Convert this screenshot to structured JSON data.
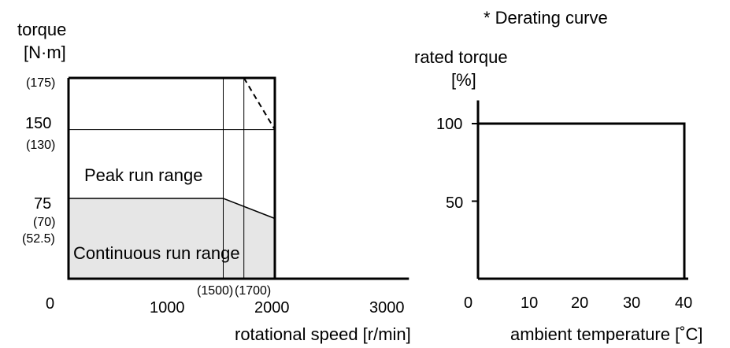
{
  "note": "* Derating curve",
  "chart_data": [
    {
      "type": "area",
      "ylabel_line1": "torque",
      "ylabel_line2": "[N·m]",
      "xlabel": "rotational speed [r/min]",
      "xlim": [
        0,
        3200
      ],
      "ylim": [
        0,
        175
      ],
      "x_ticks": [
        "0",
        "1000",
        "2000",
        "3000"
      ],
      "y_ticks": [
        "150",
        "75"
      ],
      "y_marked_values": [
        "(175)",
        "(130)",
        "(70)",
        "(52.5)"
      ],
      "x_marked_values": [
        "(1500)",
        "(1700)"
      ],
      "annotations": [
        "Peak run range",
        "Continuous run range"
      ],
      "continuous_region": {
        "x": [
          0,
          1500,
          2000,
          2000,
          0
        ],
        "y": [
          70,
          70,
          52.5,
          0,
          0
        ]
      },
      "peak_boundary": {
        "x": [
          0,
          2000,
          2000,
          0
        ],
        "y": [
          175,
          175,
          0,
          0
        ]
      },
      "peak_derating_dashed": {
        "x": [
          1700,
          2000
        ],
        "y": [
          175,
          130
        ]
      },
      "guide_lines": {
        "x": [
          1500,
          1700
        ],
        "y": [
          130
        ]
      },
      "grid": false
    },
    {
      "type": "line",
      "ylabel_line1": "rated torque",
      "ylabel_line2": "[%]",
      "xlabel": "ambient temperature [˚C]",
      "xlim": [
        0,
        40
      ],
      "ylim": [
        0,
        115
      ],
      "x_ticks": [
        "0",
        "10",
        "20",
        "30",
        "40"
      ],
      "y_ticks": [
        "100",
        "50"
      ],
      "series": [
        {
          "x": [
            0,
            40,
            40
          ],
          "y": [
            100,
            100,
            0
          ]
        }
      ],
      "grid": false
    }
  ]
}
